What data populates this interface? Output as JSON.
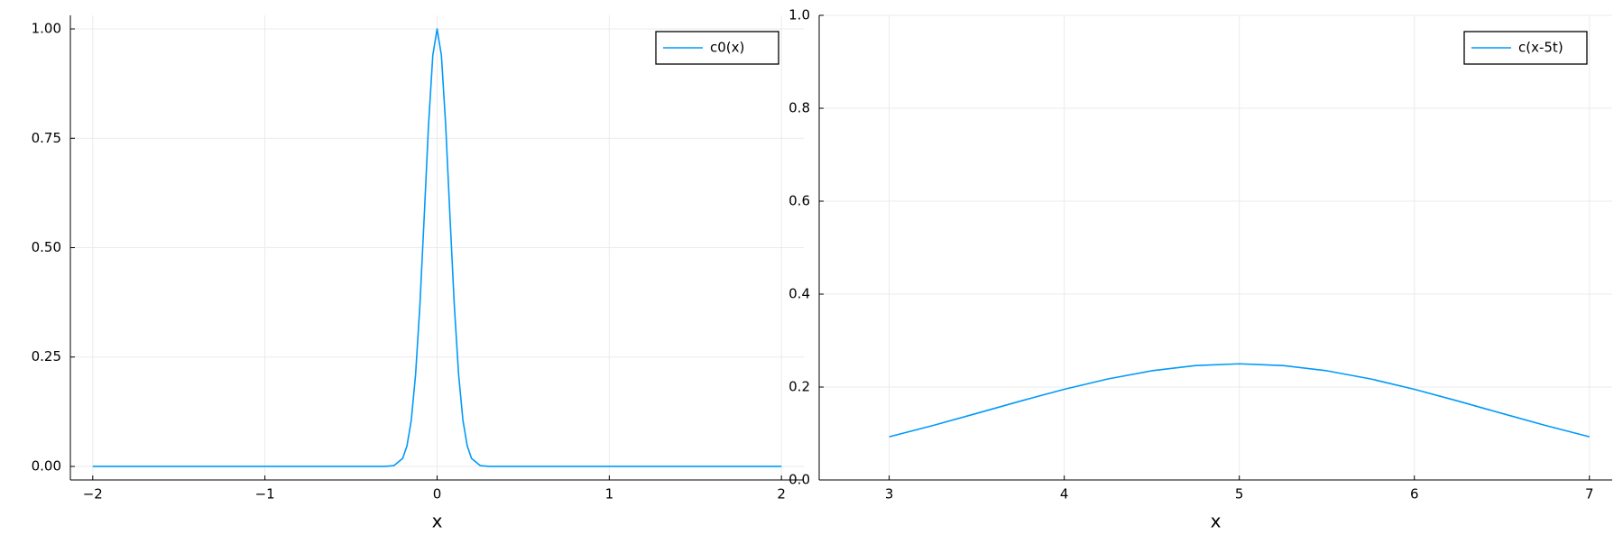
{
  "chart_data": [
    {
      "type": "line",
      "xlabel": "x",
      "x": [
        -2,
        -1,
        -0.5,
        -0.3,
        -0.25,
        -0.2,
        -0.175,
        -0.15,
        -0.125,
        -0.1,
        -0.075,
        -0.05,
        -0.025,
        0,
        0.025,
        0.05,
        0.075,
        0.1,
        0.125,
        0.15,
        0.175,
        0.2,
        0.25,
        0.3,
        0.5,
        1,
        2
      ],
      "series": [
        {
          "name": "c0(x)",
          "color": "#009af9",
          "values": [
            0,
            0,
            0,
            0.0001,
            0.0019,
            0.0183,
            0.0468,
            0.1054,
            0.2096,
            0.3679,
            0.5698,
            0.7788,
            0.9394,
            1,
            0.9394,
            0.7788,
            0.5698,
            0.3679,
            0.2096,
            0.1054,
            0.0468,
            0.0183,
            0.0019,
            0.0001,
            0,
            0,
            0
          ]
        }
      ],
      "xlim": [
        -2.13,
        2.13
      ],
      "xticks": [
        {
          "value": -2,
          "label": "−2"
        },
        {
          "value": -1,
          "label": "−1"
        },
        0,
        1,
        2
      ],
      "ylim": [
        -0.031,
        1.031
      ],
      "yticks": [
        {
          "value": 0,
          "label": "0.00"
        },
        {
          "value": 0.25,
          "label": "0.25"
        },
        {
          "value": 0.5,
          "label": "0.50"
        },
        {
          "value": 0.75,
          "label": "0.75"
        },
        {
          "value": 1,
          "label": "1.00"
        }
      ],
      "grid": true,
      "legend": "top-right"
    },
    {
      "type": "line",
      "xlabel": "x",
      "x": [
        3,
        3.25,
        3.5,
        3.75,
        4,
        4.25,
        4.5,
        4.75,
        5,
        5.25,
        5.5,
        5.75,
        6,
        6.25,
        6.5,
        6.75,
        7
      ],
      "series": [
        {
          "name": "c(x-5t)",
          "color": "#009af9",
          "values": [
            0.0929,
            0.1172,
            0.1433,
            0.1698,
            0.1952,
            0.2175,
            0.235,
            0.2462,
            0.25,
            0.2462,
            0.235,
            0.2175,
            0.1952,
            0.1698,
            0.1433,
            0.1172,
            0.0929
          ]
        }
      ],
      "xlim": [
        2.6,
        7.13
      ],
      "xticks": [
        3,
        4,
        5,
        6,
        7
      ],
      "ylim": [
        0,
        1
      ],
      "yticks": [
        {
          "value": 0,
          "label": "0.0"
        },
        {
          "value": 0.2,
          "label": "0.2"
        },
        {
          "value": 0.4,
          "label": "0.4"
        },
        {
          "value": 0.6,
          "label": "0.6"
        },
        {
          "value": 0.8,
          "label": "0.8"
        },
        {
          "value": 1,
          "label": "1.0"
        }
      ],
      "grid": true,
      "legend": "top-right"
    }
  ]
}
